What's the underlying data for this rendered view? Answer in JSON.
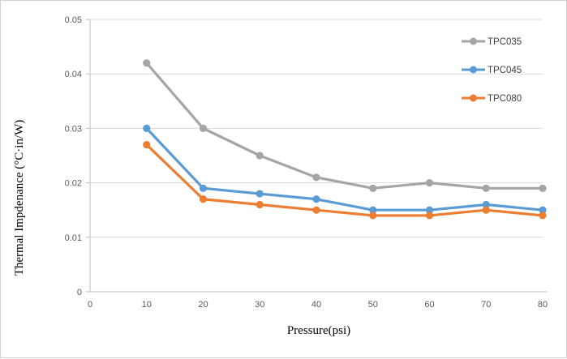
{
  "chart": {
    "background": "#ffffff",
    "frame_border_color": "#d0d0d0",
    "gridline_color": "#d9d9d9",
    "axis_line_color": "#bfbfbf",
    "tick_label_color": "#595959",
    "legend_text_color": "#404040"
  },
  "chart_data": {
    "type": "line",
    "title": "",
    "xlabel": "Pressure(psi)",
    "ylabel": "Thermal Impdenance (°C·in/W)",
    "x": [
      10,
      20,
      30,
      40,
      50,
      60,
      70,
      80
    ],
    "xlim": [
      0,
      80
    ],
    "ylim": [
      0,
      0.05
    ],
    "x_ticks": [
      0,
      10,
      20,
      30,
      40,
      50,
      60,
      70,
      80
    ],
    "x_tick_labels": [
      "0",
      "10",
      "20",
      "30",
      "40",
      "50",
      "60",
      "70",
      "80"
    ],
    "y_ticks": [
      0,
      0.01,
      0.02,
      0.03,
      0.04,
      0.05
    ],
    "y_tick_labels": [
      "0",
      "0.01",
      "0.02",
      "0.03",
      "0.04",
      "0.05"
    ],
    "grid": "horizontal",
    "legend_position": "top-right",
    "marker": "circle",
    "series": [
      {
        "name": "TPC035",
        "color": "#a5a5a5",
        "values": [
          0.042,
          0.03,
          0.025,
          0.021,
          0.019,
          0.02,
          0.019,
          0.019
        ]
      },
      {
        "name": "TPC045",
        "color": "#5b9bd5",
        "values": [
          0.03,
          0.019,
          0.018,
          0.017,
          0.015,
          0.015,
          0.016,
          0.015
        ]
      },
      {
        "name": "TPC080",
        "color": "#ed7d31",
        "values": [
          0.027,
          0.017,
          0.016,
          0.015,
          0.014,
          0.014,
          0.015,
          0.014
        ]
      }
    ]
  }
}
